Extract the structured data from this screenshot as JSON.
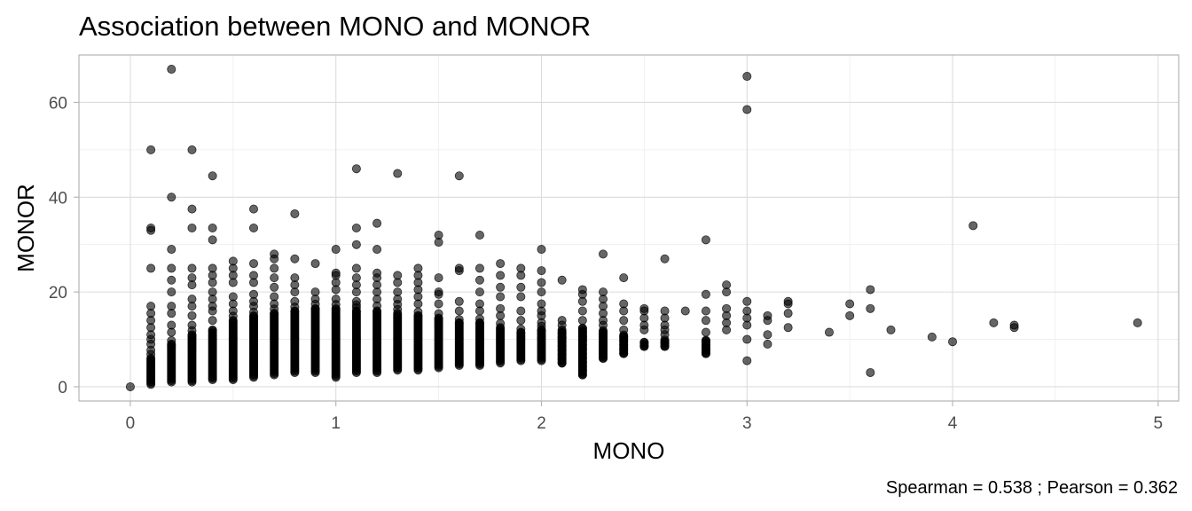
{
  "chart_data": {
    "type": "scatter",
    "title": "Association between MONO and MONOR",
    "xlabel": "MONO",
    "ylabel": "MONOR",
    "caption": "Spearman = 0.538 ; Pearson = 0.362",
    "xlim": [
      -0.25,
      5.1
    ],
    "ylim": [
      -3,
      70
    ],
    "x_ticks": [
      0,
      1,
      2,
      3,
      4,
      5
    ],
    "y_ticks": [
      0,
      20,
      40,
      60
    ],
    "grid": true,
    "point_color": "#000000",
    "point_opacity": 0.6,
    "columns": [
      {
        "x": 0.1,
        "ymin": 0.5,
        "ymax": 8,
        "dense_top": 6,
        "extra": [
          9,
          10,
          11,
          12.5,
          14,
          15.5,
          17,
          25,
          33,
          33.5,
          50
        ]
      },
      {
        "x": 0.2,
        "ymin": 1,
        "ymax": 10.5,
        "dense_top": 9,
        "extra": [
          11.5,
          13,
          15.5,
          17,
          20,
          22.5,
          25,
          29,
          40,
          67
        ]
      },
      {
        "x": 0.3,
        "ymin": 1,
        "ymax": 12,
        "dense_top": 11,
        "extra": [
          13,
          15,
          17,
          18.5,
          21.5,
          23,
          25,
          33.5,
          37.5,
          50
        ]
      },
      {
        "x": 0.4,
        "ymin": 1.5,
        "ymax": 13,
        "dense_top": 12,
        "extra": [
          14,
          16,
          17,
          18.5,
          20,
          22,
          23.5,
          25,
          31,
          33.5,
          44.5
        ]
      },
      {
        "x": 0.5,
        "ymin": 1.5,
        "ymax": 15,
        "dense_top": 14,
        "extra": [
          16,
          17.5,
          19,
          22,
          23.5,
          25,
          26.5
        ]
      },
      {
        "x": 0.6,
        "ymin": 2,
        "ymax": 16,
        "dense_top": 15,
        "extra": [
          17,
          18,
          19.5,
          22,
          23.5,
          26,
          33.5,
          37.5
        ]
      },
      {
        "x": 0.7,
        "ymin": 2.5,
        "ymax": 16.5,
        "dense_top": 15.5,
        "extra": [
          17.5,
          19,
          21,
          23,
          25,
          27,
          28
        ]
      },
      {
        "x": 0.8,
        "ymin": 3,
        "ymax": 17,
        "dense_top": 16,
        "extra": [
          18,
          20,
          21.5,
          23,
          27,
          36.5
        ]
      },
      {
        "x": 0.9,
        "ymin": 3,
        "ymax": 17.5,
        "dense_top": 16.5,
        "extra": [
          18.5,
          20,
          26
        ]
      },
      {
        "x": 1.0,
        "ymin": 2,
        "ymax": 17.5,
        "dense_top": 16.5,
        "extra": [
          18.5,
          20.5,
          22,
          23.5,
          24,
          29
        ]
      },
      {
        "x": 1.1,
        "ymin": 3,
        "ymax": 17.5,
        "dense_top": 16,
        "extra": [
          18,
          20,
          21.5,
          23,
          25,
          30,
          33.5,
          46
        ]
      },
      {
        "x": 1.2,
        "ymin": 3,
        "ymax": 17.5,
        "dense_top": 16,
        "extra": [
          18.5,
          20,
          21.5,
          23,
          24,
          29,
          34.5
        ]
      },
      {
        "x": 1.3,
        "ymin": 3.5,
        "ymax": 17.5,
        "dense_top": 15.5,
        "extra": [
          18.5,
          20,
          22,
          23.5,
          45
        ]
      },
      {
        "x": 1.4,
        "ymin": 3.5,
        "ymax": 16.5,
        "dense_top": 15,
        "extra": [
          17.5,
          19,
          20.5,
          22,
          23.5,
          25
        ]
      },
      {
        "x": 1.5,
        "ymin": 4,
        "ymax": 16,
        "dense_top": 14.5,
        "extra": [
          17.5,
          19.5,
          20,
          23,
          30.5,
          32
        ]
      },
      {
        "x": 1.6,
        "ymin": 4.5,
        "ymax": 15,
        "dense_top": 13.5,
        "extra": [
          16,
          18,
          24.5,
          25,
          44.5
        ]
      },
      {
        "x": 1.7,
        "ymin": 4.5,
        "ymax": 15,
        "dense_top": 13.5,
        "extra": [
          16,
          17.5,
          20,
          22.5,
          25,
          32
        ]
      },
      {
        "x": 1.8,
        "ymin": 5,
        "ymax": 14,
        "dense_top": 12.5,
        "extra": [
          15,
          16.5,
          19,
          21,
          23.5,
          26
        ]
      },
      {
        "x": 1.9,
        "ymin": 5.5,
        "ymax": 13,
        "dense_top": 11.5,
        "extra": [
          14,
          16,
          19,
          21,
          23.5,
          25
        ]
      },
      {
        "x": 2.0,
        "ymin": 5.5,
        "ymax": 14,
        "dense_top": 12,
        "extra": [
          15,
          16,
          17.5,
          20,
          22,
          24.5,
          29
        ]
      },
      {
        "x": 2.1,
        "ymin": 5,
        "ymax": 12,
        "extra": [
          13,
          14,
          22.5
        ]
      },
      {
        "x": 2.2,
        "ymin": 2.5,
        "ymax": 12.5,
        "extra": [
          14,
          16,
          18,
          19.5,
          20.5
        ]
      },
      {
        "x": 2.3,
        "ymin": 6,
        "ymax": 12,
        "extra": [
          13,
          14,
          15.5,
          17,
          18.5,
          20,
          28
        ]
      },
      {
        "x": 2.4,
        "ymin": 7,
        "ymax": 11,
        "extra": [
          12,
          14,
          16,
          17.5,
          23
        ]
      },
      {
        "x": 2.5,
        "ymin": 8.5,
        "ymax": 9.5,
        "extra": [
          12,
          13,
          14.5,
          16,
          16.5
        ]
      },
      {
        "x": 2.6,
        "ymin": 8.5,
        "ymax": 10,
        "extra": [
          11,
          12,
          13,
          14.5,
          16,
          27
        ]
      },
      {
        "x": 2.7,
        "ymin": 16,
        "ymax": 16,
        "extra": []
      },
      {
        "x": 2.8,
        "ymin": 7,
        "ymax": 10,
        "extra": [
          11.5,
          14,
          16,
          19.5,
          31
        ]
      },
      {
        "x": 2.9,
        "ymin": 12,
        "ymax": 12,
        "extra": [
          13.5,
          15,
          16.5,
          20,
          21.5
        ]
      },
      {
        "x": 3.0,
        "ymin": 5.5,
        "ymax": 5.5,
        "extra": [
          10,
          13,
          14.5,
          16,
          18,
          58.5,
          65.5
        ]
      },
      {
        "x": 3.1,
        "ymin": 9,
        "ymax": 9,
        "extra": [
          11,
          14,
          15
        ]
      },
      {
        "x": 3.2,
        "ymin": 12.5,
        "ymax": 12.5,
        "extra": [
          15.5,
          17.5,
          18
        ]
      },
      {
        "x": 3.4,
        "ymin": 11.5,
        "ymax": 11.5,
        "extra": []
      },
      {
        "x": 3.5,
        "ymin": 15,
        "ymax": 15,
        "extra": [
          17.5
        ]
      },
      {
        "x": 3.6,
        "ymin": 3,
        "ymax": 3,
        "extra": [
          16.5,
          20.5
        ]
      },
      {
        "x": 3.7,
        "ymin": 12,
        "ymax": 12,
        "extra": []
      },
      {
        "x": 3.9,
        "ymin": 10.5,
        "ymax": 10.5,
        "extra": []
      },
      {
        "x": 4.0,
        "ymin": 9.5,
        "ymax": 9.5,
        "extra": []
      },
      {
        "x": 4.1,
        "ymin": 34,
        "ymax": 34,
        "extra": []
      },
      {
        "x": 4.2,
        "ymin": 13.5,
        "ymax": 13.5,
        "extra": []
      },
      {
        "x": 4.3,
        "ymin": 12.5,
        "ymax": 12.5,
        "extra": [
          13
        ]
      },
      {
        "x": 4.9,
        "ymin": 13.5,
        "ymax": 13.5,
        "extra": []
      }
    ],
    "single_points": [
      {
        "x": 0.0,
        "y": 0
      }
    ]
  }
}
